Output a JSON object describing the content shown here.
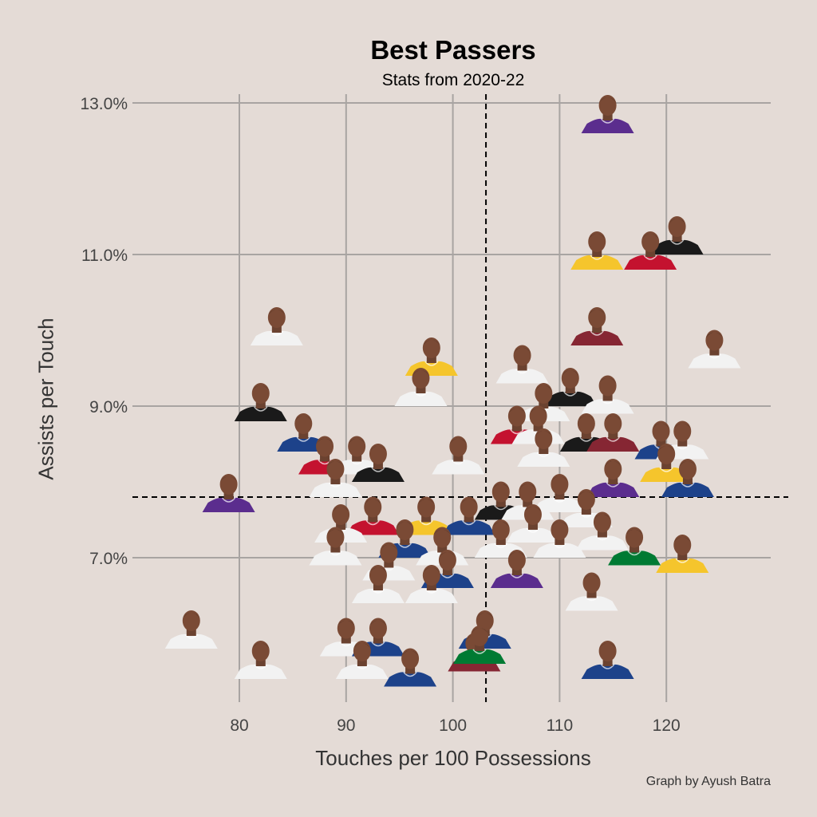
{
  "chart_data": {
    "type": "scatter",
    "title": "Best Passers",
    "subtitle": "Stats from 2020-22",
    "xlabel": "Touches per 100 Possessions",
    "ylabel": "Assists per Touch",
    "caption": "Graph by Ayush Batra",
    "x_ticks": [
      "80",
      "90",
      "100",
      "110",
      "120"
    ],
    "y_ticks": [
      "13.0%",
      "11.0%",
      "9.0%",
      "7.0%"
    ],
    "xlim": [
      72,
      130
    ],
    "ylim": [
      5.3,
      13.6
    ],
    "y_tick_values": [
      13.0,
      11.0,
      9.0,
      7.0
    ],
    "x_tick_values": [
      80,
      90,
      100,
      110,
      120
    ],
    "reference_lines": {
      "x": 103.1,
      "y": 7.8
    },
    "grid": true,
    "marker": "player headshot",
    "points": [
      {
        "x": 114.5,
        "y": 12.6,
        "jersey": "#5b2d8e"
      },
      {
        "x": 121.0,
        "y": 11.0,
        "jersey": "#1a1a1a"
      },
      {
        "x": 113.5,
        "y": 10.8,
        "jersey": "#f5c52c"
      },
      {
        "x": 118.5,
        "y": 10.8,
        "jersey": "#c4122f"
      },
      {
        "x": 124.5,
        "y": 9.5,
        "jersey": "#f2f2f2"
      },
      {
        "x": 83.5,
        "y": 9.8,
        "jersey": "#f2f2f2"
      },
      {
        "x": 113.5,
        "y": 9.8,
        "jersey": "#862633"
      },
      {
        "x": 98.0,
        "y": 9.4,
        "jersey": "#f5c52c"
      },
      {
        "x": 106.5,
        "y": 9.3,
        "jersey": "#f2f2f2"
      },
      {
        "x": 97.0,
        "y": 9.0,
        "jersey": "#f2f2f2"
      },
      {
        "x": 82.0,
        "y": 8.8,
        "jersey": "#1a1a1a"
      },
      {
        "x": 111.0,
        "y": 9.0,
        "jersey": "#1a1a1a"
      },
      {
        "x": 114.5,
        "y": 8.9,
        "jersey": "#f2f2f2"
      },
      {
        "x": 108.5,
        "y": 8.8,
        "jersey": "#f2f2f2"
      },
      {
        "x": 106.0,
        "y": 8.5,
        "jersey": "#c4122f"
      },
      {
        "x": 108.0,
        "y": 8.5,
        "jersey": "#f2f2f2"
      },
      {
        "x": 112.5,
        "y": 8.4,
        "jersey": "#1a1a1a"
      },
      {
        "x": 115.0,
        "y": 8.4,
        "jersey": "#862633"
      },
      {
        "x": 119.5,
        "y": 8.3,
        "jersey": "#1d428a"
      },
      {
        "x": 121.5,
        "y": 8.3,
        "jersey": "#f2f2f2"
      },
      {
        "x": 86.0,
        "y": 8.4,
        "jersey": "#1d428a"
      },
      {
        "x": 108.5,
        "y": 8.2,
        "jersey": "#f2f2f2"
      },
      {
        "x": 88.0,
        "y": 8.1,
        "jersey": "#c4122f"
      },
      {
        "x": 91.0,
        "y": 8.1,
        "jersey": "#f2f2f2"
      },
      {
        "x": 93.0,
        "y": 8.0,
        "jersey": "#1a1a1a"
      },
      {
        "x": 100.5,
        "y": 8.1,
        "jersey": "#f2f2f2"
      },
      {
        "x": 120.0,
        "y": 8.0,
        "jersey": "#f5c52c"
      },
      {
        "x": 122.0,
        "y": 7.8,
        "jersey": "#1d428a"
      },
      {
        "x": 89.0,
        "y": 7.8,
        "jersey": "#f2f2f2"
      },
      {
        "x": 79.0,
        "y": 7.6,
        "jersey": "#5b2d8e"
      },
      {
        "x": 115.0,
        "y": 7.8,
        "jersey": "#5b2d8e"
      },
      {
        "x": 110.0,
        "y": 7.6,
        "jersey": "#f2f2f2"
      },
      {
        "x": 104.5,
        "y": 7.5,
        "jersey": "#1a1a1a"
      },
      {
        "x": 107.0,
        "y": 7.5,
        "jersey": "#f2f2f2"
      },
      {
        "x": 112.5,
        "y": 7.4,
        "jersey": "#f2f2f2"
      },
      {
        "x": 92.5,
        "y": 7.3,
        "jersey": "#c4122f"
      },
      {
        "x": 97.5,
        "y": 7.3,
        "jersey": "#f5c52c"
      },
      {
        "x": 101.5,
        "y": 7.3,
        "jersey": "#1d428a"
      },
      {
        "x": 89.5,
        "y": 7.2,
        "jersey": "#f2f2f2"
      },
      {
        "x": 107.5,
        "y": 7.2,
        "jersey": "#f2f2f2"
      },
      {
        "x": 114.0,
        "y": 7.1,
        "jersey": "#f2f2f2"
      },
      {
        "x": 117.0,
        "y": 6.9,
        "jersey": "#007a33"
      },
      {
        "x": 95.5,
        "y": 7.0,
        "jersey": "#1d428a"
      },
      {
        "x": 99.0,
        "y": 6.9,
        "jersey": "#f2f2f2"
      },
      {
        "x": 104.5,
        "y": 7.0,
        "jersey": "#f2f2f2"
      },
      {
        "x": 110.0,
        "y": 7.0,
        "jersey": "#f2f2f2"
      },
      {
        "x": 89.0,
        "y": 6.9,
        "jersey": "#f2f2f2"
      },
      {
        "x": 121.5,
        "y": 6.8,
        "jersey": "#f5c52c"
      },
      {
        "x": 94.0,
        "y": 6.7,
        "jersey": "#f2f2f2"
      },
      {
        "x": 99.5,
        "y": 6.6,
        "jersey": "#1d428a"
      },
      {
        "x": 106.0,
        "y": 6.6,
        "jersey": "#5b2d8e"
      },
      {
        "x": 93.0,
        "y": 6.4,
        "jersey": "#f2f2f2"
      },
      {
        "x": 98.0,
        "y": 6.4,
        "jersey": "#f2f2f2"
      },
      {
        "x": 113.0,
        "y": 6.3,
        "jersey": "#f2f2f2"
      },
      {
        "x": 75.5,
        "y": 5.8,
        "jersey": "#f2f2f2"
      },
      {
        "x": 90.0,
        "y": 5.7,
        "jersey": "#f2f2f2"
      },
      {
        "x": 93.0,
        "y": 5.7,
        "jersey": "#1d428a"
      },
      {
        "x": 103.0,
        "y": 5.8,
        "jersey": "#1d428a"
      },
      {
        "x": 102.0,
        "y": 5.5,
        "jersey": "#862633"
      },
      {
        "x": 102.5,
        "y": 5.6,
        "jersey": "#007a33"
      },
      {
        "x": 82.0,
        "y": 5.4,
        "jersey": "#f2f2f2"
      },
      {
        "x": 91.5,
        "y": 5.4,
        "jersey": "#f2f2f2"
      },
      {
        "x": 96.0,
        "y": 5.3,
        "jersey": "#1d428a"
      },
      {
        "x": 114.5,
        "y": 5.4,
        "jersey": "#1d428a"
      }
    ]
  }
}
